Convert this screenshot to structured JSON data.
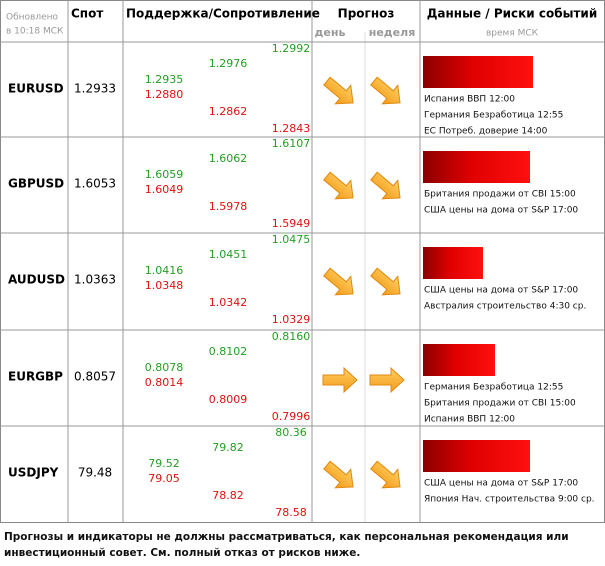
{
  "header": {
    "updated": [
      "Обновлено",
      "в 10:18 МСК"
    ],
    "spot": "Спот",
    "levels": "Поддержка/Сопротивление",
    "forecast": "Прогноз",
    "day": "день",
    "week": "неделя",
    "events": "Данные / Риски событий",
    "time": "время МСК"
  },
  "rows": [
    {
      "pair": "EURUSD",
      "spot": "1.2933",
      "levels": [
        [
          "1.2935",
          "1.2880"
        ],
        [
          "1.2976",
          "1.2862"
        ],
        [
          "1.2992",
          "1.2843"
        ]
      ],
      "events": [
        "Испания ВВП 12:00",
        "Германия Безработица 12:55",
        "ЕС Потреб. доверие 14:00"
      ]
    },
    {
      "pair": "GBPUSD",
      "spot": "1.6053",
      "levels": [
        [
          "1.6059",
          "1.6049"
        ],
        [
          "1.6062",
          "1.5978"
        ],
        [
          "1.6107",
          "1.5949"
        ]
      ],
      "events": [
        "Британия продажи от CBI 15:00",
        "США цены на дома от S&P 17:00"
      ]
    },
    {
      "pair": "AUDUSD",
      "spot": "1.0363",
      "levels": [
        [
          "1.0416",
          "1.0348"
        ],
        [
          "1.0451",
          "1.0342"
        ],
        [
          "1.0475",
          "1.0329"
        ]
      ],
      "events": [
        "США цены на дома от S&P 17:00",
        "Австралия строительство 4:30 ср."
      ]
    },
    {
      "pair": "EURGBP",
      "spot": "0.8057",
      "levels": [
        [
          "0.8078",
          "0.8014"
        ],
        [
          "0.8102",
          "0.8009"
        ],
        [
          "0.8160",
          "0.7996"
        ]
      ],
      "events": [
        "Германия Безработица 12:55",
        "Британия продажи от CBI 15:00",
        "Испания ВВП 12:00"
      ]
    },
    {
      "pair": "USDJPY",
      "spot": "79.48",
      "levels": [
        [
          "79.52",
          "79.05"
        ],
        [
          "79.82",
          "78.82"
        ],
        [
          "80.36",
          "78.58"
        ]
      ],
      "events": [
        "США цены на дома от S&P 17:00",
        "Япония Нач. строительства 9:00 ср."
      ]
    }
  ],
  "footer": "Прогнозы и индикаторы не должны рассматриваться, как персональная рекомендация или инвестиционный совет. См. полный отказ от рисков ниже."
}
